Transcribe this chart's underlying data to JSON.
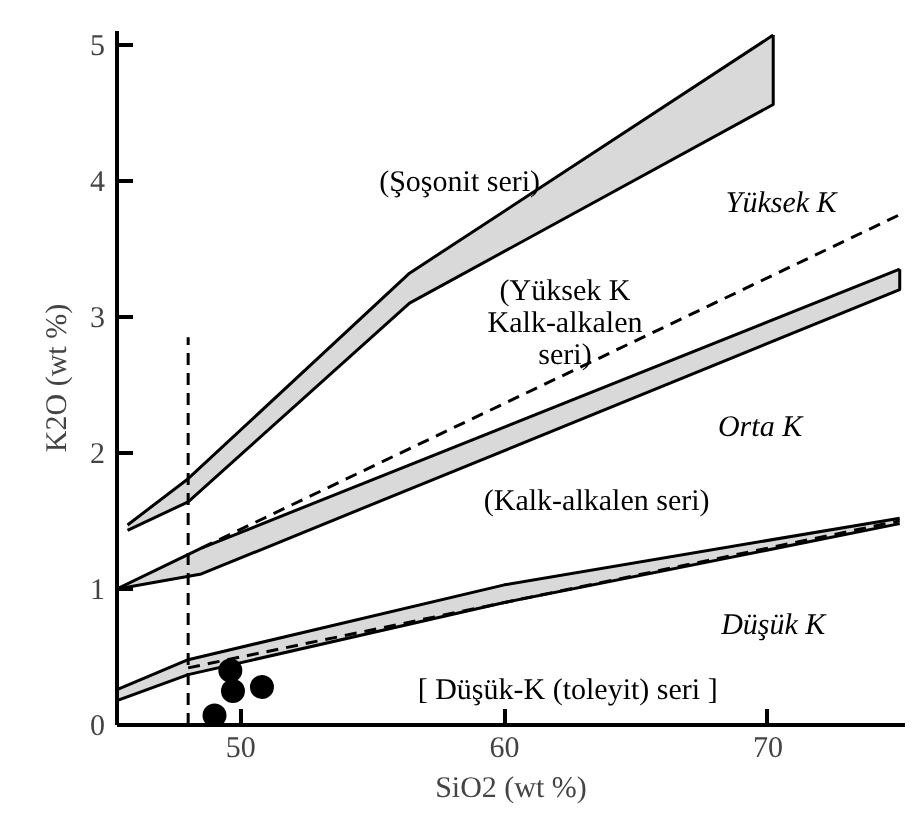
{
  "chart_data": {
    "type": "line",
    "xlabel": "SiO2 (wt %)",
    "ylabel": "K2O (wt %)",
    "xlim": [
      45.3,
      75.2
    ],
    "ylim": [
      0,
      5.1
    ],
    "xticks": [
      50,
      60,
      70
    ],
    "yticks": [
      0,
      1,
      2,
      3,
      4,
      5
    ],
    "grid": false,
    "series": [
      {
        "color": "#000000",
        "x": [
          45.7,
          48,
          56.4,
          70.2
        ],
        "values": [
          1.47,
          1.81,
          3.32,
          5.07
        ],
        "lower": [
          1.43,
          1.64,
          3.1,
          4.56
        ],
        "upper": [
          1.47,
          1.81,
          3.32,
          5.07
        ]
      },
      {
        "color": "#000000",
        "x": [
          45.3,
          48.5,
          75
        ],
        "values": [
          1.0,
          1.3,
          3.35
        ],
        "lower": [
          1.0,
          1.11,
          3.2
        ],
        "upper": [
          1.0,
          1.3,
          3.35
        ]
      },
      {
        "color": "#000000",
        "x": [
          45.3,
          48,
          60,
          75
        ],
        "values": [
          0.26,
          0.48,
          1.03,
          1.52
        ],
        "lower": [
          0.18,
          0.37,
          0.9,
          1.48
        ],
        "upper": [
          0.26,
          0.48,
          1.03,
          1.52
        ]
      },
      {
        "color": "#000000",
        "x": [
          45.7,
          48,
          56.4,
          70.2,
          70.2
        ],
        "values": [
          1.43,
          1.64,
          3.1,
          4.56,
          5.07
        ]
      },
      {
        "color": "#000000",
        "x": [
          45.3,
          48.5,
          75,
          75
        ],
        "values": [
          1.0,
          1.11,
          3.2,
          3.35
        ]
      },
      {
        "color": "#000000",
        "x": [
          45.3,
          48,
          60,
          75
        ],
        "values": [
          0.18,
          0.37,
          0.9,
          1.48
        ]
      },
      {
        "color": "#000000",
        "line_style": "dashed",
        "x": [
          48.5,
          75
        ],
        "values": [
          1.3,
          3.75
        ]
      },
      {
        "color": "#000000",
        "line_style": "dashed",
        "x": [
          48,
          75
        ],
        "values": [
          0.42,
          1.5
        ]
      },
      {
        "color": "#000000",
        "line_style": "dashed",
        "x": [
          48,
          48
        ],
        "values": [
          0,
          2.85
        ]
      },
      {
        "type": "scatter",
        "color": "#000000",
        "marker": "circle",
        "x": [
          49.0,
          49.6,
          49.7,
          50.8
        ],
        "values": [
          0.07,
          0.4,
          0.25,
          0.28
        ]
      }
    ],
    "annotations": [
      "(Şoşonit seri)",
      "Yüksek K",
      "(Yüksek K\nKalk-alkalen\nseri)",
      "Orta K",
      "(Kalk-alkalen seri)",
      "Düşük K",
      "[ Düşük-K (toleyit) seri ]"
    ]
  }
}
